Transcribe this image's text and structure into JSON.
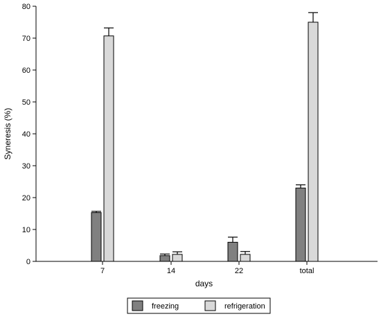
{
  "chart_data": {
    "type": "bar",
    "title": "",
    "xlabel": "days",
    "ylabel": "Syneresis (%)",
    "ylim": [
      0,
      80
    ],
    "yticks": [
      0,
      10,
      20,
      30,
      40,
      50,
      60,
      70,
      80
    ],
    "categories": [
      "7",
      "14",
      "22",
      "total"
    ],
    "series": [
      {
        "name": "freezing",
        "color": "#808080",
        "values": [
          15.3,
          1.8,
          6.0,
          23.0
        ],
        "errors": [
          0.4,
          0.5,
          1.6,
          1.0
        ]
      },
      {
        "name": "refrigeration",
        "color": "#d9d9d9",
        "values": [
          70.7,
          2.2,
          2.2,
          75.0
        ],
        "errors": [
          2.5,
          0.8,
          0.9,
          3.0
        ]
      }
    ],
    "grid": false,
    "legend_position": "bottom"
  }
}
